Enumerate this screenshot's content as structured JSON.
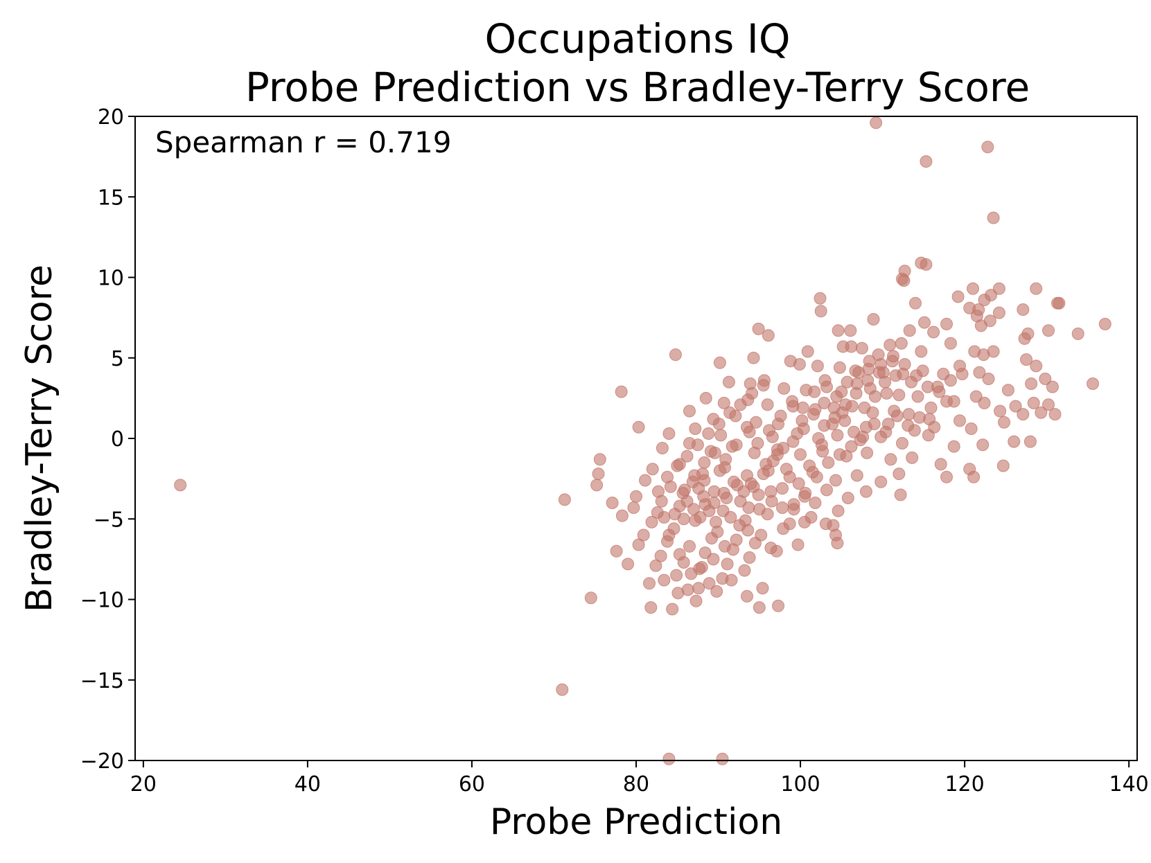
{
  "chart_data": {
    "type": "scatter",
    "title": [
      "Occupations IQ",
      "Probe Prediction vs Bradley-Terry Score"
    ],
    "xlabel": "Probe Prediction",
    "ylabel": "Bradley-Terry Score",
    "annotation": "Spearman r = 0.719",
    "xlim": [
      19,
      141
    ],
    "ylim": [
      -20,
      20
    ],
    "xticks": [
      20,
      40,
      60,
      80,
      100,
      120,
      140
    ],
    "xtick_labels": [
      "20",
      "40",
      "60",
      "80",
      "100",
      "120",
      "140"
    ],
    "yticks": [
      -20,
      -15,
      -10,
      -5,
      0,
      5,
      10,
      15,
      20
    ],
    "ytick_labels": [
      "−20",
      "−15",
      "−10",
      "−5",
      "0",
      "5",
      "10",
      "15",
      "20"
    ],
    "grid": false,
    "marker_color": "#c2766a",
    "marker_opacity": 0.6,
    "points": [
      [
        24.5,
        -2.9
      ],
      [
        71.3,
        -3.8
      ],
      [
        71,
        -15.6
      ],
      [
        74.5,
        -9.9
      ],
      [
        84,
        -19.9
      ],
      [
        90.5,
        -19.9
      ],
      [
        109.2,
        19.6
      ],
      [
        115.3,
        17.2
      ],
      [
        122.8,
        18.1
      ],
      [
        123.5,
        13.7
      ],
      [
        114.7,
        10.9
      ],
      [
        115.3,
        10.8
      ],
      [
        112.7,
        10.4
      ],
      [
        112.4,
        9.9
      ],
      [
        112.6,
        9.8
      ],
      [
        121,
        9.3
      ],
      [
        124.2,
        9.3
      ],
      [
        128.7,
        9.3
      ],
      [
        119.2,
        8.8
      ],
      [
        122.4,
        8.6
      ],
      [
        123.2,
        8.9
      ],
      [
        131.3,
        8.4
      ],
      [
        131.5,
        8.4
      ],
      [
        102.4,
        8.7
      ],
      [
        102.5,
        7.9
      ],
      [
        114,
        8.4
      ],
      [
        120.6,
        8.1
      ],
      [
        121.7,
        8
      ],
      [
        127.1,
        8
      ],
      [
        124.2,
        7.8
      ],
      [
        108.9,
        7.4
      ],
      [
        115.1,
        7.2
      ],
      [
        117.8,
        7.1
      ],
      [
        121.5,
        7.6
      ],
      [
        123.1,
        7.3
      ],
      [
        122,
        7
      ],
      [
        137.1,
        7.1
      ],
      [
        130.2,
        6.7
      ],
      [
        133.8,
        6.5
      ],
      [
        113.3,
        6.7
      ],
      [
        116.2,
        6.6
      ],
      [
        104.6,
        6.7
      ],
      [
        106.1,
        6.7
      ],
      [
        94.9,
        6.8
      ],
      [
        96.1,
        6.4
      ],
      [
        127.7,
        6.5
      ],
      [
        127.3,
        6.2
      ],
      [
        110.9,
        5.8
      ],
      [
        112.3,
        5.9
      ],
      [
        118.3,
        5.9
      ],
      [
        107.5,
        5.6
      ],
      [
        100.9,
        5.4
      ],
      [
        105.2,
        5.7
      ],
      [
        106.2,
        5.7
      ],
      [
        109.5,
        5.2
      ],
      [
        111.3,
        5.1
      ],
      [
        114.7,
        5.4
      ],
      [
        121.2,
        5.4
      ],
      [
        123.5,
        5.4
      ],
      [
        122.3,
        5.2
      ],
      [
        84.8,
        5.2
      ],
      [
        90.2,
        4.7
      ],
      [
        94.3,
        5
      ],
      [
        98.8,
        4.8
      ],
      [
        99.9,
        4.6
      ],
      [
        102.1,
        4.5
      ],
      [
        104.8,
        4.4
      ],
      [
        106.7,
        4.2
      ],
      [
        108.3,
        4.3
      ],
      [
        110.1,
        4.1
      ],
      [
        112.5,
        4
      ],
      [
        114.9,
        4.2
      ],
      [
        117.4,
        4
      ],
      [
        119.4,
        4.5
      ],
      [
        121.8,
        4.1
      ],
      [
        127.5,
        4.9
      ],
      [
        128.7,
        4.5
      ],
      [
        113.5,
        3.5
      ],
      [
        116.7,
        3.2
      ],
      [
        122.9,
        3.7
      ],
      [
        125.3,
        3
      ],
      [
        128.1,
        3.4
      ],
      [
        129.8,
        3.7
      ],
      [
        130.7,
        3.2
      ],
      [
        135.6,
        3.4
      ],
      [
        91.3,
        3.5
      ],
      [
        93.9,
        3.4
      ],
      [
        95.5,
        3.3
      ],
      [
        98,
        3.1
      ],
      [
        100.7,
        3
      ],
      [
        103.2,
        3.2
      ],
      [
        105,
        2.9
      ],
      [
        106.9,
        3.4
      ],
      [
        108.5,
        3.1
      ],
      [
        110.5,
        2.8
      ],
      [
        112,
        2.7
      ],
      [
        114.3,
        2.6
      ],
      [
        117.8,
        2.3
      ],
      [
        118.7,
        2.3
      ],
      [
        121.4,
        2.6
      ],
      [
        122.4,
        2.2
      ],
      [
        126.2,
        2
      ],
      [
        128.4,
        2.2
      ],
      [
        130.2,
        2.1
      ],
      [
        78.2,
        2.9
      ],
      [
        88.5,
        2.5
      ],
      [
        90.7,
        2.2
      ],
      [
        93.6,
        2.4
      ],
      [
        96,
        2.1
      ],
      [
        99.1,
        2
      ],
      [
        101.8,
        1.8
      ],
      [
        104.1,
        1.9
      ],
      [
        106.3,
        2
      ],
      [
        108.8,
        1.6
      ],
      [
        111.4,
        1.7
      ],
      [
        113.2,
        1.5
      ],
      [
        115.7,
        1.2
      ],
      [
        119.4,
        1.1
      ],
      [
        124.3,
        1.7
      ],
      [
        127.1,
        1.5
      ],
      [
        129.3,
        1.6
      ],
      [
        131,
        1.5
      ],
      [
        86.5,
        1.7
      ],
      [
        89.4,
        1.2
      ],
      [
        92.1,
        1.4
      ],
      [
        94.6,
        1
      ],
      [
        97.3,
        0.9
      ],
      [
        100.2,
        1.1
      ],
      [
        102.9,
        0.8
      ],
      [
        105.4,
        1.1
      ],
      [
        108,
        0.7
      ],
      [
        110.7,
        0.9
      ],
      [
        113.9,
        0.5
      ],
      [
        116.3,
        0.7
      ],
      [
        120.8,
        0.6
      ],
      [
        124.8,
        1
      ],
      [
        80.3,
        0.7
      ],
      [
        84,
        0.3
      ],
      [
        87.2,
        0.6
      ],
      [
        90.3,
        0.2
      ],
      [
        93.8,
        0.4
      ],
      [
        96.6,
        0.1
      ],
      [
        99.6,
        0.3
      ],
      [
        102.2,
        0
      ],
      [
        104.5,
        0.2
      ],
      [
        107.3,
        -0.1
      ],
      [
        109.8,
        0.1
      ],
      [
        112.4,
        -0.3
      ],
      [
        115.6,
        0.2
      ],
      [
        118.7,
        -0.5
      ],
      [
        122.2,
        -0.4
      ],
      [
        126,
        -0.2
      ],
      [
        128,
        -0.2
      ],
      [
        83.2,
        -0.6
      ],
      [
        86.5,
        -0.3
      ],
      [
        89.1,
        -0.8
      ],
      [
        91.7,
        -0.5
      ],
      [
        94.4,
        -0.9
      ],
      [
        97.2,
        -0.7
      ],
      [
        100,
        -1
      ],
      [
        102.7,
        -0.8
      ],
      [
        105.6,
        -1.1
      ],
      [
        108.1,
        -0.9
      ],
      [
        111,
        -1.3
      ],
      [
        113.6,
        -1.2
      ],
      [
        117.1,
        -1.6
      ],
      [
        120.6,
        -1.9
      ],
      [
        124.7,
        -1.7
      ],
      [
        75.6,
        -1.3
      ],
      [
        82,
        -1.9
      ],
      [
        85.3,
        -1.6
      ],
      [
        88.1,
        -2.2
      ],
      [
        90.8,
        -1.8
      ],
      [
        93.5,
        -2.3
      ],
      [
        96.1,
        -2
      ],
      [
        98.7,
        -2.4
      ],
      [
        101.5,
        -2.1
      ],
      [
        104.3,
        -2.6
      ],
      [
        106.9,
        -2.3
      ],
      [
        109.8,
        -2.7
      ],
      [
        112,
        -2.2
      ],
      [
        117.8,
        -2.4
      ],
      [
        121.1,
        -2.4
      ],
      [
        75.4,
        -2.2
      ],
      [
        81.1,
        -2.6
      ],
      [
        84.2,
        -3
      ],
      [
        86.9,
        -2.7
      ],
      [
        89.5,
        -3.3
      ],
      [
        92.3,
        -2.9
      ],
      [
        94.9,
        -3.5
      ],
      [
        97.8,
        -3.1
      ],
      [
        100.5,
        -3.6
      ],
      [
        103.2,
        -3.2
      ],
      [
        105.8,
        -3.7
      ],
      [
        108,
        -3.3
      ],
      [
        112.2,
        -3.5
      ],
      [
        75.2,
        -2.9
      ],
      [
        80,
        -3.6
      ],
      [
        83.1,
        -3.9
      ],
      [
        85.7,
        -3.4
      ],
      [
        88.4,
        -4.1
      ],
      [
        91,
        -3.7
      ],
      [
        93.7,
        -4.3
      ],
      [
        96.5,
        -3.9
      ],
      [
        99.2,
        -4.4
      ],
      [
        101.8,
        -4
      ],
      [
        104.6,
        -4.5
      ],
      [
        77.1,
        -4
      ],
      [
        79.7,
        -4.3
      ],
      [
        82.6,
        -4.6
      ],
      [
        85.3,
        -4.2
      ],
      [
        87.8,
        -4.9
      ],
      [
        90.6,
        -4.5
      ],
      [
        93.3,
        -5.1
      ],
      [
        96,
        -4.7
      ],
      [
        98.7,
        -5.3
      ],
      [
        101.3,
        -4.9
      ],
      [
        104,
        -5.4
      ],
      [
        78.3,
        -4.8
      ],
      [
        81.9,
        -5.2
      ],
      [
        84.6,
        -5.6
      ],
      [
        87.2,
        -5.1
      ],
      [
        89.9,
        -5.8
      ],
      [
        92.6,
        -5.4
      ],
      [
        95.2,
        -6
      ],
      [
        97.9,
        -5.6
      ],
      [
        100.5,
        -5.2
      ],
      [
        103.1,
        -5.3
      ],
      [
        104.3,
        -6
      ],
      [
        104.5,
        -6.5
      ],
      [
        80.9,
        -6
      ],
      [
        83.8,
        -6.4
      ],
      [
        86.5,
        -6.7
      ],
      [
        89.2,
        -6.2
      ],
      [
        91.8,
        -6.9
      ],
      [
        94.5,
        -6.5
      ],
      [
        97.1,
        -7
      ],
      [
        99.7,
        -6.6
      ],
      [
        77.6,
        -7
      ],
      [
        80.3,
        -6.6
      ],
      [
        83,
        -7.3
      ],
      [
        85.8,
        -7.7
      ],
      [
        88.4,
        -7.1
      ],
      [
        91.1,
        -7.8
      ],
      [
        93.8,
        -7.4
      ],
      [
        96.4,
        -6.8
      ],
      [
        79,
        -7.8
      ],
      [
        82.4,
        -7.9
      ],
      [
        84.9,
        -8.5
      ],
      [
        87.7,
        -8.1
      ],
      [
        90.5,
        -8.7
      ],
      [
        93.2,
        -8.2
      ],
      [
        81.6,
        -9
      ],
      [
        83.4,
        -8.8
      ],
      [
        86.3,
        -9.4
      ],
      [
        88.9,
        -9
      ],
      [
        91.6,
        -8.8
      ],
      [
        95.4,
        -9.3
      ],
      [
        81.8,
        -10.5
      ],
      [
        84.4,
        -10.6
      ],
      [
        87.3,
        -10.1
      ],
      [
        95,
        -10.5
      ],
      [
        97.3,
        -10.4
      ],
      [
        93.5,
        -9.8
      ],
      [
        85.1,
        -9.6
      ],
      [
        87.6,
        -9.3
      ],
      [
        89.8,
        -9.5
      ],
      [
        90.2,
        -2
      ],
      [
        88.3,
        -2.6
      ],
      [
        87.6,
        -3.1
      ],
      [
        86.2,
        -3.9
      ],
      [
        88.9,
        -4.5
      ],
      [
        89.7,
        -5.2
      ],
      [
        91.5,
        -4.9
      ],
      [
        92.7,
        -3.9
      ],
      [
        94,
        -2.8
      ],
      [
        95.8,
        -1.6
      ],
      [
        97.2,
        -1
      ],
      [
        98.3,
        -1.9
      ],
      [
        99.8,
        -2.8
      ],
      [
        101.1,
        -1.7
      ],
      [
        102.6,
        -0.4
      ],
      [
        103.9,
        0.9
      ],
      [
        105.1,
        1.6
      ],
      [
        106.5,
        0.4
      ],
      [
        107.8,
        1.9
      ],
      [
        109.1,
        2.6
      ],
      [
        110.3,
        3.5
      ],
      [
        111.6,
        3.9
      ],
      [
        109.6,
        4.1
      ],
      [
        108.2,
        3.6
      ],
      [
        106.8,
        2.8
      ],
      [
        105.5,
        2.1
      ],
      [
        104.2,
        1.3
      ],
      [
        102.9,
        2.2
      ],
      [
        101.6,
        1.5
      ],
      [
        100.4,
        0.6
      ],
      [
        99.1,
        -0.2
      ],
      [
        97.9,
        -0.6
      ],
      [
        96.7,
        -1.4
      ],
      [
        95.5,
        -2.2
      ],
      [
        94.3,
        -3
      ],
      [
        93.1,
        -3.3
      ],
      [
        91.9,
        -2.7
      ],
      [
        90.7,
        -3.4
      ],
      [
        89.5,
        -4
      ],
      [
        88.2,
        -3.6
      ],
      [
        87,
        -4.4
      ],
      [
        85.8,
        -5
      ],
      [
        84.7,
        -4.7
      ],
      [
        85.9,
        -3.2
      ],
      [
        87.1,
        -2.3
      ],
      [
        88.3,
        -1.5
      ],
      [
        89.6,
        -0.9
      ],
      [
        90.9,
        -1.3
      ],
      [
        92.2,
        -0.4
      ],
      [
        93.5,
        0.7
      ],
      [
        94.8,
        -0.3
      ],
      [
        96.2,
        0.5
      ],
      [
        97.6,
        1.4
      ],
      [
        99,
        2.3
      ],
      [
        100.3,
        1.9
      ],
      [
        101.7,
        2.9
      ],
      [
        103,
        3.6
      ],
      [
        104.4,
        2.6
      ],
      [
        105.7,
        3.5
      ],
      [
        107.1,
        4.1
      ],
      [
        108.4,
        4.8
      ],
      [
        109.8,
        4.6
      ],
      [
        111.2,
        4.8
      ],
      [
        112.7,
        4.6
      ],
      [
        114.1,
        3.9
      ],
      [
        115.5,
        3.2
      ],
      [
        116.9,
        2.9
      ],
      [
        118.3,
        3.6
      ],
      [
        119.7,
        4
      ],
      [
        114.5,
        1.3
      ],
      [
        115.9,
        1.9
      ],
      [
        113.1,
        0.8
      ],
      [
        111.8,
        1.4
      ],
      [
        110.4,
        0.4
      ],
      [
        109,
        0.9
      ],
      [
        107.6,
        0.1
      ],
      [
        106.2,
        -0.5
      ],
      [
        104.8,
        -1
      ],
      [
        103.4,
        -1.5
      ],
      [
        102,
        -2.4
      ],
      [
        100.6,
        -3.4
      ],
      [
        99.2,
        -4.1
      ],
      [
        97.8,
        -4.3
      ],
      [
        96.4,
        -3.3
      ],
      [
        95,
        -4.4
      ],
      [
        93.6,
        -5.7
      ],
      [
        92.2,
        -6.3
      ],
      [
        90.8,
        -6.7
      ],
      [
        89.4,
        -7.5
      ],
      [
        88,
        -8
      ],
      [
        86.7,
        -8.4
      ],
      [
        85.3,
        -7.2
      ],
      [
        84,
        -6
      ],
      [
        83.4,
        -4.9
      ],
      [
        82.7,
        -3.3
      ],
      [
        83.8,
        -2.4
      ],
      [
        85,
        -1.7
      ],
      [
        86.2,
        -1.1
      ],
      [
        87.5,
        -0.4
      ],
      [
        88.8,
        0.3
      ],
      [
        90.1,
        0.9
      ],
      [
        91.4,
        1.6
      ],
      [
        92.7,
        2.1
      ],
      [
        94.1,
        2.8
      ],
      [
        95.6,
        3.6
      ]
    ]
  }
}
